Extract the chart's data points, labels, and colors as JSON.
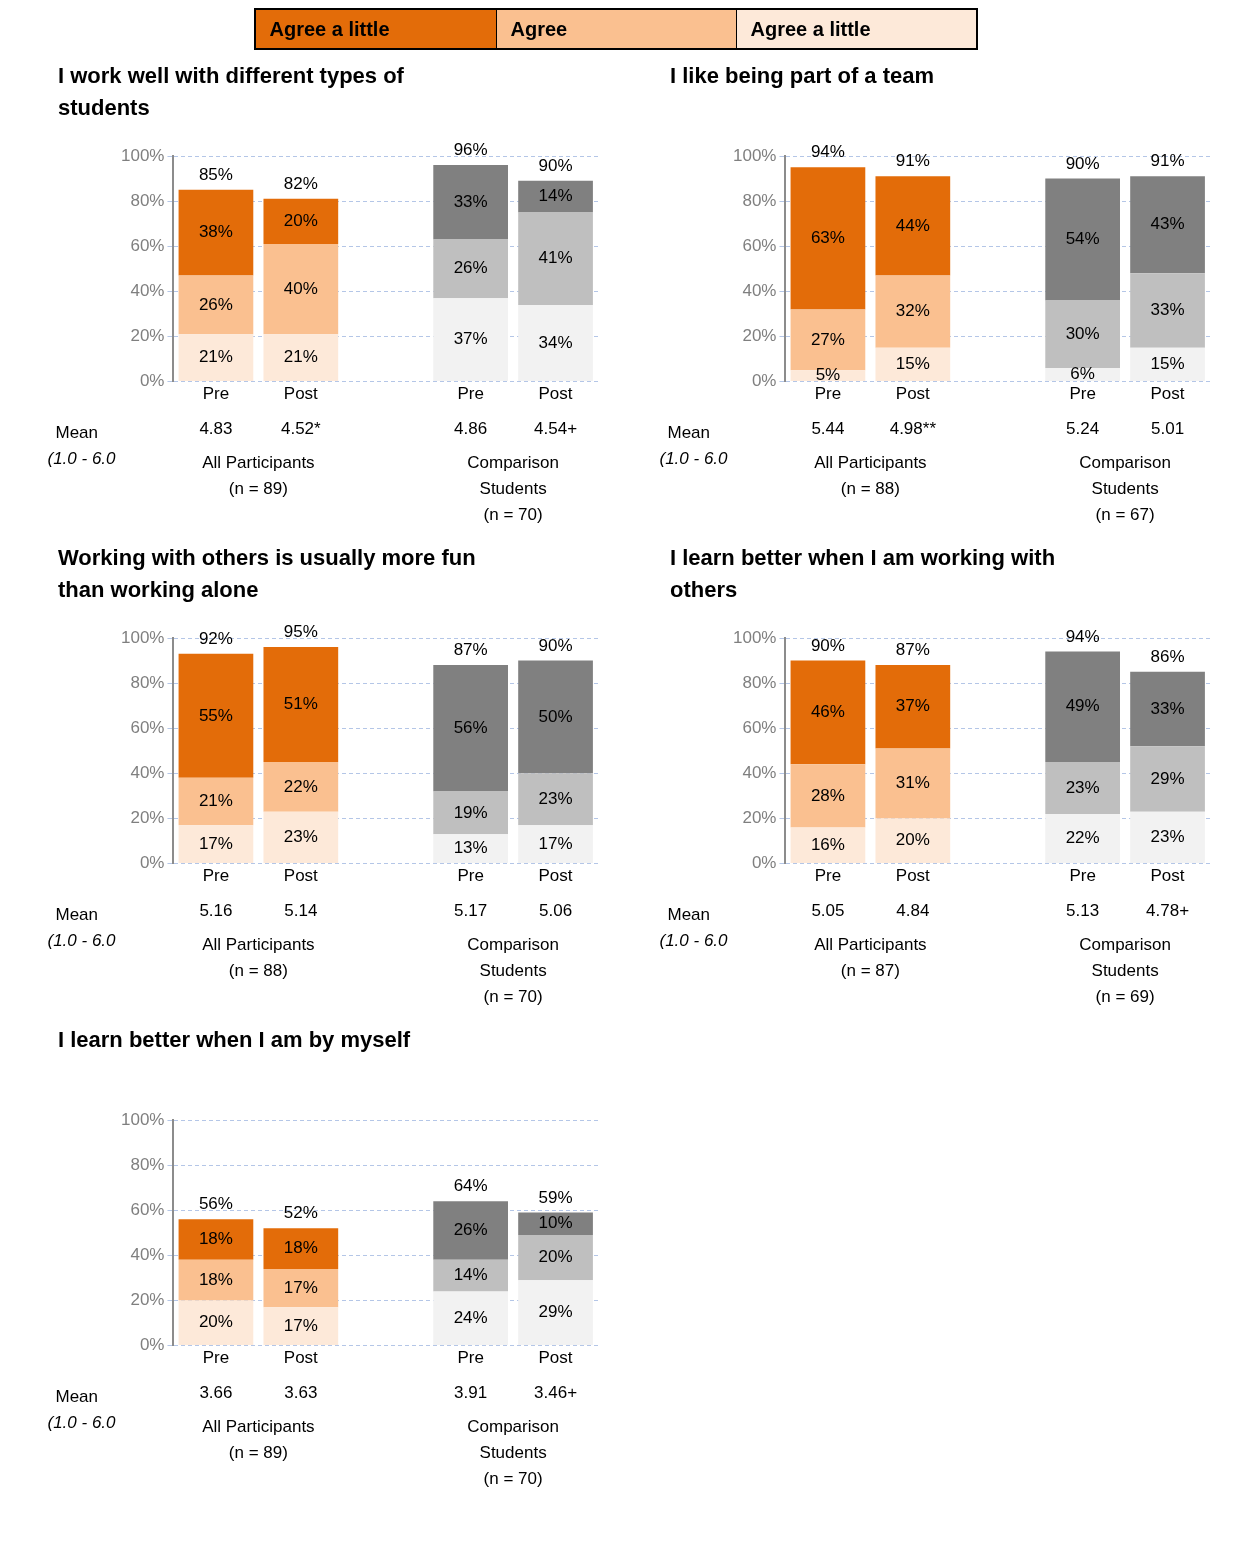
{
  "chart_data": [
    {
      "type": "bar",
      "stacked": true,
      "title": "I work well with different types of students",
      "categories": [
        "Pre",
        "Post",
        null,
        "Pre",
        "Post"
      ],
      "legend": "top",
      "grid": "y",
      "ylim": [
        0,
        100
      ],
      "yticks": [
        {
          "value": 0,
          "label": "0%"
        },
        {
          "value": 20,
          "label": "20%"
        },
        {
          "value": 40,
          "label": "40%"
        },
        {
          "value": 60,
          "label": "60%"
        },
        {
          "value": 80,
          "label": "80%"
        },
        {
          "value": 100,
          "label": "100%"
        }
      ],
      "series": [
        {
          "name": "Agree a little",
          "color": "#fde9d9",
          "colors": [
            "#fde9d9",
            "#fde9d9",
            null,
            "#f2f2f2",
            "#f2f2f2"
          ],
          "values": [
            21,
            21,
            null,
            37,
            34
          ],
          "value_labels": [
            "21%",
            "21%",
            null,
            "37%",
            "34%"
          ]
        },
        {
          "name": "Agree",
          "color": "#fac090",
          "colors": [
            "#fac090",
            "#fac090",
            null,
            "#bfbfbf",
            "#bfbfbf"
          ],
          "values": [
            26,
            40,
            null,
            26,
            41
          ],
          "value_labels": [
            "26%",
            "40%",
            null,
            "26%",
            "41%"
          ]
        },
        {
          "name": "Agree a little",
          "color": "#e36c09",
          "colors": [
            "#e36c09",
            "#e36c09",
            null,
            "#808080",
            "#808080"
          ],
          "values": [
            38,
            20,
            null,
            33,
            14
          ],
          "value_labels": [
            "38%",
            "20%",
            null,
            "33%",
            "14%"
          ]
        }
      ],
      "totals": [
        "85%",
        "82%",
        null,
        "96%",
        "90%"
      ],
      "annotations": [
        "Mean",
        "(1.0 - 6.0",
        "4.83",
        "4.52*",
        "4.86",
        "4.54+",
        "All Participants\n(n = 89)",
        "Comparison\nStudents\n(n = 70)"
      ]
    },
    {
      "type": "bar",
      "stacked": true,
      "title": "I like being part of a team",
      "categories": [
        "Pre",
        "Post",
        null,
        "Pre",
        "Post"
      ],
      "grid": "y",
      "ylim": [
        0,
        100
      ],
      "yticks": [
        {
          "value": 0,
          "label": "0%"
        },
        {
          "value": 20,
          "label": "20%"
        },
        {
          "value": 40,
          "label": "40%"
        },
        {
          "value": 60,
          "label": "60%"
        },
        {
          "value": 80,
          "label": "80%"
        },
        {
          "value": 100,
          "label": "100%"
        }
      ],
      "series": [
        {
          "colors": [
            "#fde9d9",
            "#fde9d9",
            null,
            "#f2f2f2",
            "#f2f2f2"
          ],
          "values": [
            5,
            15,
            null,
            6,
            15
          ],
          "value_labels": [
            "5%",
            "15%",
            null,
            "6%",
            "15%"
          ]
        },
        {
          "colors": [
            "#fac090",
            "#fac090",
            null,
            "#bfbfbf",
            "#bfbfbf"
          ],
          "values": [
            27,
            32,
            null,
            30,
            33
          ],
          "value_labels": [
            "27%",
            "32%",
            null,
            "30%",
            "33%"
          ]
        },
        {
          "colors": [
            "#e36c09",
            "#e36c09",
            null,
            "#808080",
            "#808080"
          ],
          "values": [
            63,
            44,
            null,
            54,
            43
          ],
          "value_labels": [
            "63%",
            "44%",
            null,
            "54%",
            "43%"
          ]
        }
      ],
      "totals": [
        "94%",
        "91%",
        null,
        "90%",
        "91%"
      ],
      "annotations": [
        "Mean",
        "(1.0 - 6.0",
        "5.44",
        "4.98**",
        "5.24",
        "5.01",
        "All Participants\n(n = 88)",
        "Comparison\nStudents\n(n = 67)"
      ]
    },
    {
      "type": "bar",
      "stacked": true,
      "title": "Working with others is usually more fun than working alone",
      "categories": [
        "Pre",
        "Post",
        null,
        "Pre",
        "Post"
      ],
      "grid": "y",
      "ylim": [
        0,
        100
      ],
      "yticks": [
        {
          "value": 0,
          "label": "0%"
        },
        {
          "value": 20,
          "label": "20%"
        },
        {
          "value": 40,
          "label": "40%"
        },
        {
          "value": 60,
          "label": "60%"
        },
        {
          "value": 80,
          "label": "80%"
        },
        {
          "value": 100,
          "label": "100%"
        }
      ],
      "series": [
        {
          "colors": [
            "#fde9d9",
            "#fde9d9",
            null,
            "#f2f2f2",
            "#f2f2f2"
          ],
          "values": [
            17,
            23,
            null,
            13,
            17
          ],
          "value_labels": [
            "17%",
            "23%",
            null,
            "13%",
            "17%"
          ]
        },
        {
          "colors": [
            "#fac090",
            "#fac090",
            null,
            "#bfbfbf",
            "#bfbfbf"
          ],
          "values": [
            21,
            22,
            null,
            19,
            23
          ],
          "value_labels": [
            "21%",
            "22%",
            null,
            "19%",
            "23%"
          ]
        },
        {
          "colors": [
            "#e36c09",
            "#e36c09",
            null,
            "#808080",
            "#808080"
          ],
          "values": [
            55,
            51,
            null,
            56,
            50
          ],
          "value_labels": [
            "55%",
            "51%",
            null,
            "56%",
            "50%"
          ]
        }
      ],
      "totals": [
        "92%",
        "95%",
        null,
        "87%",
        "90%"
      ],
      "annotations": [
        "Mean",
        "(1.0 - 6.0",
        "5.16",
        "5.14",
        "5.17",
        "5.06",
        "All Participants\n(n = 88)",
        "Comparison\nStudents\n(n = 70)"
      ]
    },
    {
      "type": "bar",
      "stacked": true,
      "title": "I learn better when I am working with others",
      "categories": [
        "Pre",
        "Post",
        null,
        "Pre",
        "Post"
      ],
      "grid": "y",
      "ylim": [
        0,
        100
      ],
      "yticks": [
        {
          "value": 0,
          "label": "0%"
        },
        {
          "value": 20,
          "label": "20%"
        },
        {
          "value": 40,
          "label": "40%"
        },
        {
          "value": 60,
          "label": "60%"
        },
        {
          "value": 80,
          "label": "80%"
        },
        {
          "value": 100,
          "label": "100%"
        }
      ],
      "series": [
        {
          "colors": [
            "#fde9d9",
            "#fde9d9",
            null,
            "#f2f2f2",
            "#f2f2f2"
          ],
          "values": [
            16,
            20,
            null,
            22,
            23
          ],
          "value_labels": [
            "16%",
            "20%",
            null,
            "22%",
            "23%"
          ]
        },
        {
          "colors": [
            "#fac090",
            "#fac090",
            null,
            "#bfbfbf",
            "#bfbfbf"
          ],
          "values": [
            28,
            31,
            null,
            23,
            29
          ],
          "value_labels": [
            "28%",
            "31%",
            null,
            "23%",
            "29%"
          ]
        },
        {
          "colors": [
            "#e36c09",
            "#e36c09",
            null,
            "#808080",
            "#808080"
          ],
          "values": [
            46,
            37,
            null,
            49,
            33
          ],
          "value_labels": [
            "46%",
            "37%",
            null,
            "49%",
            "33%"
          ]
        }
      ],
      "totals": [
        "90%",
        "87%",
        null,
        "94%",
        "86%"
      ],
      "annotations": [
        "Mean",
        "(1.0 - 6.0",
        "5.05",
        "4.84",
        "5.13",
        "4.78+",
        "All Participants\n(n = 87)",
        "Comparison\nStudents\n(n = 69)"
      ]
    },
    {
      "type": "bar",
      "stacked": true,
      "title": "I learn better when I am by myself",
      "categories": [
        "Pre",
        "Post",
        null,
        "Pre",
        "Post"
      ],
      "grid": "y",
      "ylim": [
        0,
        100
      ],
      "yticks": [
        {
          "value": 0,
          "label": "0%"
        },
        {
          "value": 20,
          "label": "20%"
        },
        {
          "value": 40,
          "label": "40%"
        },
        {
          "value": 60,
          "label": "60%"
        },
        {
          "value": 80,
          "label": "80%"
        },
        {
          "value": 100,
          "label": "100%"
        }
      ],
      "series": [
        {
          "colors": [
            "#fde9d9",
            "#fde9d9",
            null,
            "#f2f2f2",
            "#f2f2f2"
          ],
          "values": [
            20,
            17,
            null,
            24,
            29
          ],
          "value_labels": [
            "20%",
            "17%",
            null,
            "24%",
            "29%"
          ]
        },
        {
          "colors": [
            "#fac090",
            "#fac090",
            null,
            "#bfbfbf",
            "#bfbfbf"
          ],
          "values": [
            18,
            17,
            null,
            14,
            20
          ],
          "value_labels": [
            "18%",
            "17%",
            null,
            "14%",
            "20%"
          ]
        },
        {
          "colors": [
            "#e36c09",
            "#e36c09",
            null,
            "#808080",
            "#808080"
          ],
          "values": [
            18,
            18,
            null,
            26,
            10
          ],
          "value_labels": [
            "18%",
            "18%",
            null,
            "26%",
            "10%"
          ]
        }
      ],
      "totals": [
        "56%",
        "52%",
        null,
        "64%",
        "59%"
      ],
      "annotations": [
        "Mean",
        "(1.0 - 6.0",
        "3.66",
        "3.63",
        "3.91",
        "3.46+",
        "All Participants\n(n = 89)",
        "Comparison\nStudents\n(n = 70)"
      ]
    }
  ]
}
